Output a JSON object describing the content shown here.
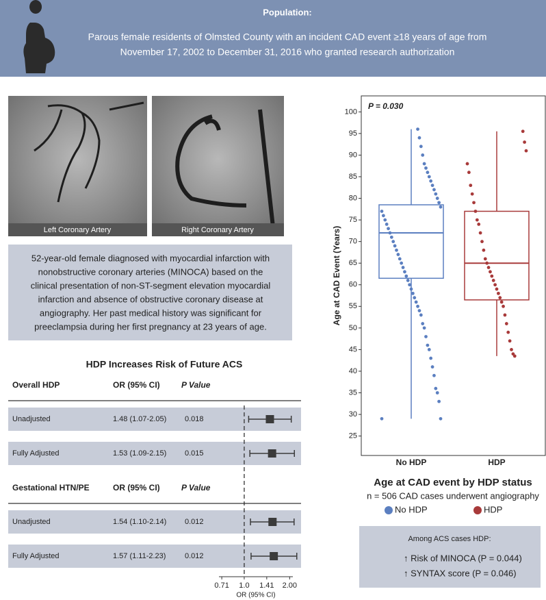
{
  "header": {
    "title": "Population:",
    "lines": [
      "Parous female residents of Olmsted County with an incident CAD event ≥18 years of age from",
      "November 17, 2002 to December 31, 2016  who granted research authorization"
    ]
  },
  "images": [
    {
      "label": "Left Coronary Artery"
    },
    {
      "label": "Right Coronary Artery"
    }
  ],
  "case_text": [
    "52-year-old female diagnosed with myocardial infarction with",
    "nonobstructive coronary arteries (MINOCA) based on the",
    "clinical presentation of non-ST-segment elevation myocardial",
    "infarction and absence of obstructive coronary disease at",
    "angiography. Her past medical history was significant for",
    "preeclampsia during her first pregnancy at 23 years of age."
  ],
  "chart_data": [
    {
      "type": "forest",
      "title": "HDP Increases Risk of Future ACS",
      "xlabel": "OR (95% CI)",
      "log_scale": true,
      "xlim": [
        0.68,
        2.1
      ],
      "xticks": [
        {
          "value": 0.71,
          "label": "0.71"
        },
        {
          "value": 1,
          "label": "1.0"
        },
        1.41,
        {
          "value": 2,
          "label": "2.00"
        }
      ],
      "reference_line": 1,
      "color": "#3b3b3b",
      "sections": [
        {
          "name": "Overall HDP",
          "columns": [
            "OR (95% CI)",
            "P Value"
          ],
          "rows": [
            {
              "label": "Unadjusted",
              "or_label": "1.48 (1.07-2.05)",
              "p": "0.018",
              "values": [
                1.48,
                1.07,
                2.05
              ]
            },
            {
              "label": "Fully Adjusted",
              "or_label": "1.53 (1.09-2.15)",
              "p": "0.015",
              "values": [
                1.53,
                1.09,
                2.15
              ]
            }
          ]
        },
        {
          "name": "Gestational HTN/PE",
          "columns": [
            "OR (95% CI)",
            "P Value"
          ],
          "rows": [
            {
              "label": "Unadjusted",
              "or_label": "1.54 (1.10-2.14)",
              "p": "0.012",
              "values": [
                1.54,
                1.1,
                2.14
              ]
            },
            {
              "label": "Fully Adjusted",
              "or_label": "1.57 (1.11-2.23)",
              "p": "0.012",
              "values": [
                1.57,
                1.11,
                2.23
              ]
            }
          ]
        }
      ]
    },
    {
      "type": "box",
      "title": "Age at CAD event by HDP status",
      "subtitle": "n = 506 CAD cases underwent angiography",
      "annotation": "P = 0.030",
      "ylabel": "Age at CAD Event (Years)",
      "categories": [
        "No HDP",
        "HDP"
      ],
      "ylim": [
        20.5,
        103.7
      ],
      "yticks": [
        25,
        30,
        35,
        40,
        45,
        50,
        55,
        60,
        65,
        70,
        75,
        80,
        85,
        90,
        95,
        100
      ],
      "series": [
        {
          "name": "No HDP",
          "color": "#5b7fc0",
          "whisker_low": 29,
          "q1": 61.5,
          "median": 72,
          "q3": 78.5,
          "whisker_high": 96,
          "points": [
            29,
            29,
            33,
            35,
            36,
            39,
            41,
            43,
            45,
            46,
            48,
            50,
            51,
            53,
            54,
            55,
            56,
            57,
            58,
            59,
            60,
            61,
            62,
            63,
            64,
            65,
            66,
            67,
            68,
            69,
            70,
            71,
            72,
            73,
            74,
            75,
            76,
            77,
            78,
            79,
            80,
            81,
            82,
            83,
            84,
            85,
            86,
            87,
            88,
            90,
            92,
            94,
            96
          ]
        },
        {
          "name": "HDP",
          "color": "#a83a3a",
          "whisker_low": 43.5,
          "q1": 56.5,
          "median": 65,
          "q3": 77,
          "whisker_high": 95.5,
          "points": [
            43.5,
            44,
            45,
            47,
            49,
            51,
            53,
            55,
            56,
            57,
            58,
            59,
            60,
            61,
            62,
            63,
            64,
            65,
            66,
            68,
            70,
            72,
            74,
            75,
            77,
            79,
            81,
            83,
            86,
            88,
            91,
            93,
            95.5
          ]
        }
      ]
    }
  ],
  "summary": {
    "title": "Among ACS cases HDP:",
    "items": [
      "↑ Risk of MINOCA (P = 0.044)",
      "↑ SYNTAX score (P = 0.046)"
    ]
  }
}
